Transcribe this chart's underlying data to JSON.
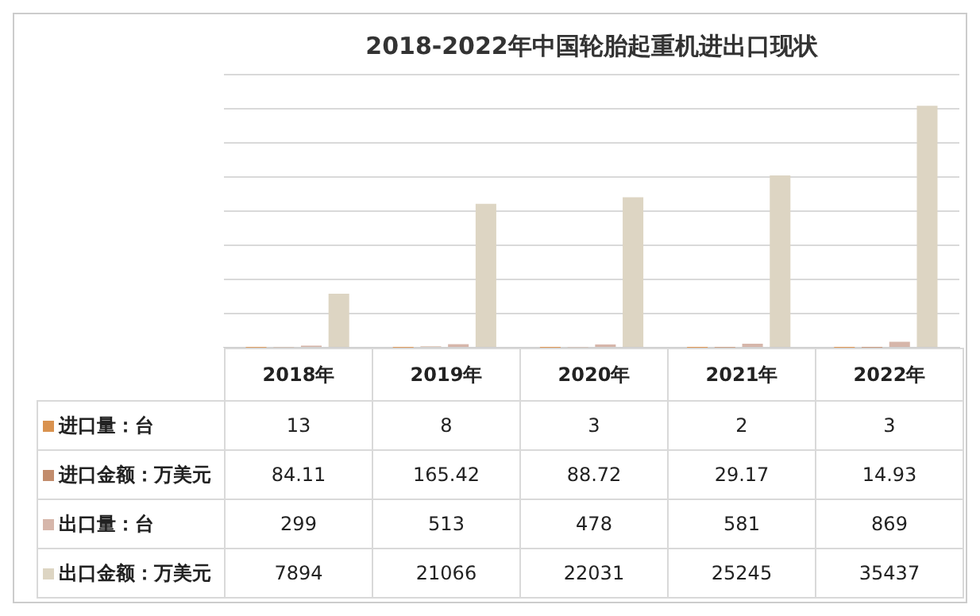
{
  "chart_data": {
    "type": "bar",
    "title": "2018-2022年中国轮胎起重机进出口现状",
    "categories": [
      "2018年",
      "2019年",
      "2020年",
      "2021年",
      "2022年"
    ],
    "series": [
      {
        "name": "进口量：台",
        "color": "#d9924f",
        "values": [
          13,
          8,
          3,
          2,
          3
        ]
      },
      {
        "name": "进口金额：万美元",
        "color": "#c28c6c",
        "values": [
          84.11,
          165.42,
          88.72,
          29.17,
          14.93
        ]
      },
      {
        "name": "出口量：台",
        "color": "#d6b6aa",
        "values": [
          299,
          513,
          478,
          581,
          869
        ]
      },
      {
        "name": "出口金额：万美元",
        "color": "#ddd5c3",
        "values": [
          7894,
          21066,
          22031,
          25245,
          35437
        ]
      }
    ],
    "ylim": [
      0,
      40000
    ],
    "yticks": [
      {
        "value": 0,
        "label": null
      },
      {
        "value": 5000,
        "label": null
      },
      {
        "value": 10000,
        "label": null
      },
      {
        "value": 15000,
        "label": null
      },
      {
        "value": 20000,
        "label": null
      },
      {
        "value": 25000,
        "label": null
      },
      {
        "value": 30000,
        "label": null
      },
      {
        "value": 35000,
        "label": null
      },
      {
        "value": 40000,
        "label": null
      }
    ],
    "grid": "y",
    "legend": "bottom left",
    "tick_labels": "x",
    "data_labels": true
  }
}
